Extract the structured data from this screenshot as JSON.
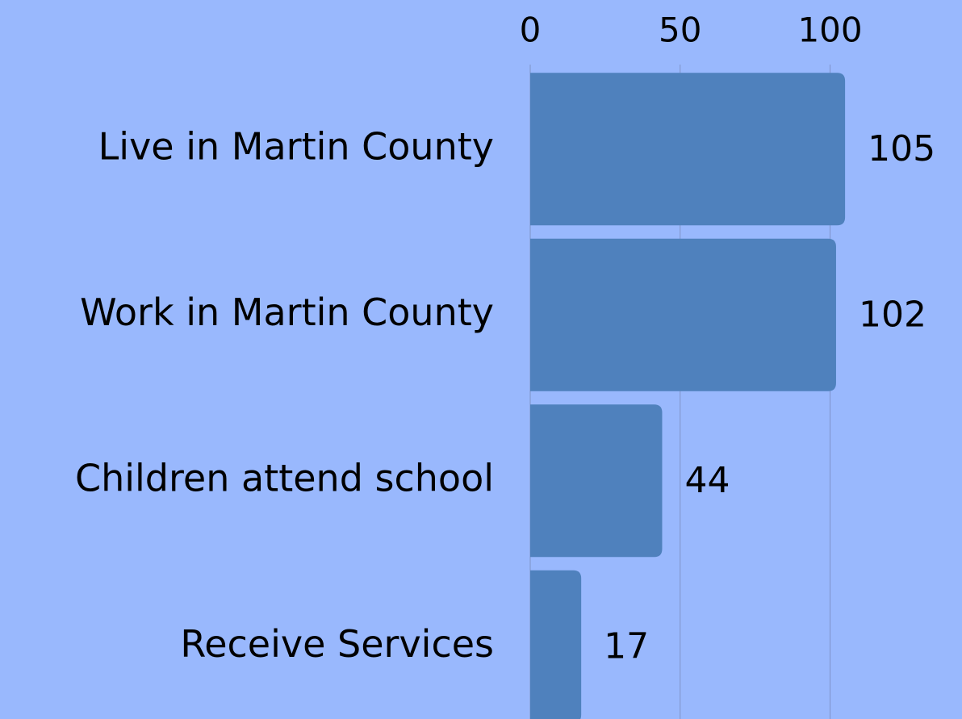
{
  "chart_data": {
    "type": "bar",
    "orientation": "horizontal",
    "categories": [
      "Live in Martin County",
      "Work in Martin County",
      "Children attend school",
      "Receive Services"
    ],
    "values": [
      105,
      102,
      44,
      17
    ],
    "color": "#4f81bd",
    "xlim": [
      0,
      144
    ],
    "xticks": [
      0,
      50,
      100
    ],
    "grid": true
  }
}
